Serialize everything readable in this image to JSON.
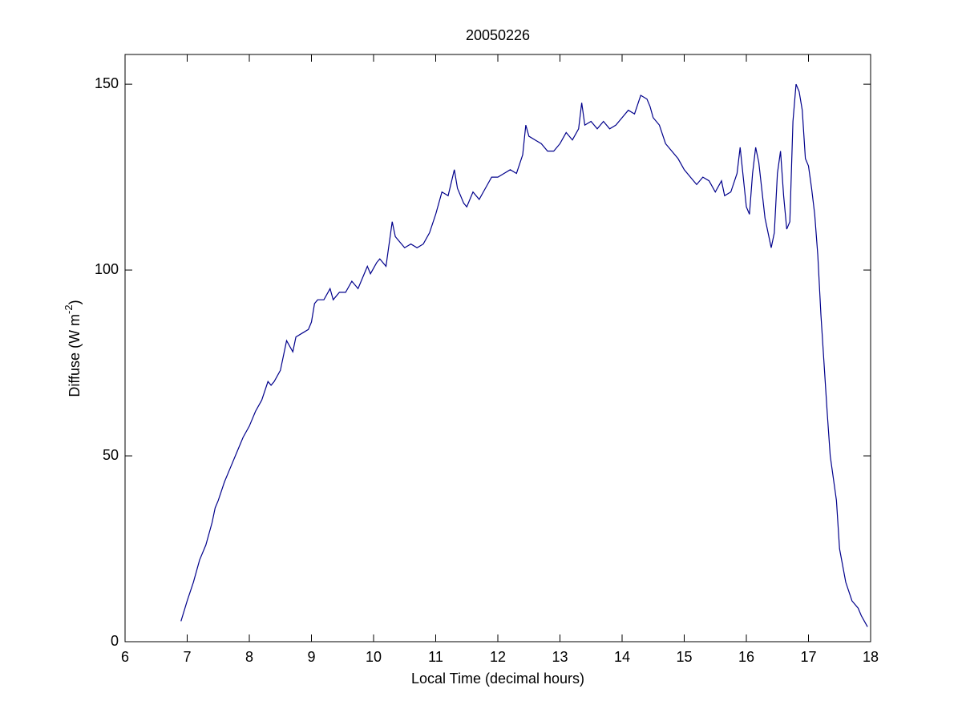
{
  "chart_data": {
    "type": "line",
    "title": "20050226",
    "xlabel": "Local Time (decimal hours)",
    "ylabel": [
      "Diffuse (W m",
      "-2",
      ")"
    ],
    "xlim": [
      6,
      18
    ],
    "xticks": [
      6,
      7,
      8,
      9,
      10,
      11,
      12,
      13,
      14,
      15,
      16,
      17,
      18
    ],
    "ylim": [
      0,
      158
    ],
    "yticks": [
      0,
      50,
      100,
      150
    ],
    "grid": false,
    "series": [
      {
        "color": "#00008b",
        "x": [
          6.9,
          7.0,
          7.1,
          7.2,
          7.3,
          7.4,
          7.45,
          7.5,
          7.6,
          7.7,
          7.8,
          7.9,
          8.0,
          8.1,
          8.2,
          8.3,
          8.35,
          8.4,
          8.5,
          8.6,
          8.7,
          8.75,
          8.85,
          8.95,
          9.0,
          9.05,
          9.1,
          9.2,
          9.3,
          9.35,
          9.45,
          9.55,
          9.65,
          9.75,
          9.85,
          9.9,
          9.95,
          10.05,
          10.1,
          10.2,
          10.25,
          10.3,
          10.35,
          10.4,
          10.5,
          10.6,
          10.7,
          10.8,
          10.9,
          11.0,
          11.1,
          11.2,
          11.3,
          11.35,
          11.45,
          11.5,
          11.6,
          11.7,
          11.8,
          11.9,
          12.0,
          12.1,
          12.2,
          12.3,
          12.4,
          12.45,
          12.5,
          12.6,
          12.7,
          12.8,
          12.9,
          13.0,
          13.1,
          13.2,
          13.3,
          13.35,
          13.4,
          13.5,
          13.6,
          13.7,
          13.8,
          13.9,
          14.0,
          14.1,
          14.2,
          14.3,
          14.4,
          14.45,
          14.5,
          14.6,
          14.7,
          14.8,
          14.9,
          15.0,
          15.1,
          15.2,
          15.3,
          15.4,
          15.5,
          15.6,
          15.65,
          15.75,
          15.85,
          15.9,
          15.95,
          16.0,
          16.05,
          16.1,
          16.15,
          16.2,
          16.3,
          16.4,
          16.45,
          16.5,
          16.55,
          16.6,
          16.65,
          16.7,
          16.75,
          16.8,
          16.85,
          16.9,
          16.95,
          17.0,
          17.05,
          17.1,
          17.15,
          17.2,
          17.25,
          17.3,
          17.35,
          17.45,
          17.5,
          17.6,
          17.7,
          17.8,
          17.85,
          17.95
        ],
        "values": [
          5.5,
          11,
          16,
          22,
          26,
          32,
          36,
          38,
          43,
          47,
          51,
          55,
          58,
          62,
          65,
          70,
          69,
          70,
          73,
          81,
          78,
          82,
          83,
          84,
          86,
          91,
          92,
          92,
          95,
          92,
          94,
          94,
          97,
          95,
          99,
          101,
          99,
          102,
          103,
          101,
          107,
          113,
          109,
          108,
          106,
          107,
          106,
          107,
          110,
          115,
          121,
          120,
          127,
          122,
          118,
          117,
          121,
          119,
          122,
          125,
          125,
          126,
          127,
          126,
          131,
          139,
          136,
          135,
          134,
          132,
          132,
          134,
          137,
          135,
          138,
          145,
          139,
          140,
          138,
          140,
          138,
          139,
          141,
          143,
          142,
          147,
          146,
          144,
          141,
          139,
          134,
          132,
          130,
          127,
          125,
          123,
          125,
          124,
          121,
          124,
          120,
          121,
          126,
          133,
          125,
          117,
          115,
          126,
          133,
          129,
          114,
          106,
          110,
          126,
          132,
          120,
          111,
          113,
          140,
          150,
          148,
          143,
          130,
          128,
          122,
          115,
          104,
          88,
          75,
          62,
          50,
          38,
          25,
          16,
          11,
          9,
          7,
          4
        ]
      }
    ]
  }
}
